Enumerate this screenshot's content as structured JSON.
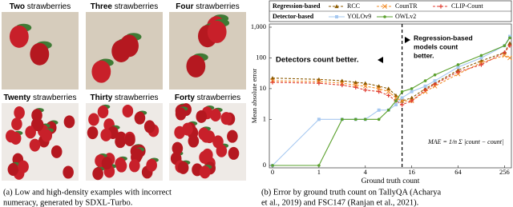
{
  "panels": {
    "a": {
      "images": [
        {
          "count": "Two",
          "noun": "strawberries"
        },
        {
          "count": "Three",
          "noun": "strawberries"
        },
        {
          "count": "Four",
          "noun": "strawberries"
        },
        {
          "count": "Twenty",
          "noun": "strawberries"
        },
        {
          "count": "Thirty",
          "noun": "strawberries"
        },
        {
          "count": "Forty",
          "noun": "strawberries"
        }
      ],
      "caption": [
        "(a) Low and high-density examples with incorrect",
        "numeracy, generated by SDXL-Turbo."
      ]
    },
    "b": {
      "caption": [
        "(b) Error by ground truth count on TallyQA (Acharya",
        "et al., 2019) and FSC147 (Ranjan et al., 2021)."
      ]
    }
  },
  "chart_data": {
    "type": "line",
    "xlabel": "Ground truth count",
    "ylabel": "Mean absolute error",
    "x": [
      0,
      1,
      2,
      3,
      4,
      6,
      8,
      10,
      12,
      16,
      24,
      32,
      64,
      128,
      256,
      300
    ],
    "xlim": [
      0,
      300
    ],
    "xticks": [
      0,
      1,
      4,
      16,
      64,
      256
    ],
    "xscale": "symlog",
    "ylim": [
      0,
      1000
    ],
    "yticks": [
      0,
      1,
      10,
      100,
      {
        "value": 1000,
        "label": "1,000"
      }
    ],
    "yscale": "symlog",
    "divider_x": 12,
    "series": [
      {
        "name": "RCC",
        "group": "Regression-based",
        "color": "#8b5a00",
        "marker": "triangle",
        "linestyle": "dashed",
        "values": [
          22,
          20,
          18,
          16,
          15,
          12,
          10,
          6,
          4,
          5,
          10,
          15,
          40,
          80,
          150,
          300
        ]
      },
      {
        "name": "CounTR",
        "group": "Regression-based",
        "color": "#f28c28",
        "marker": "cross",
        "linestyle": "dashed",
        "values": [
          18,
          17,
          15,
          13,
          12,
          10,
          8,
          5,
          4,
          4,
          8,
          12,
          30,
          70,
          120,
          100
        ]
      },
      {
        "name": "CLIP-Count",
        "group": "Regression-based",
        "color": "#e03c31",
        "marker": "plus",
        "linestyle": "dashed",
        "values": [
          16,
          15,
          13,
          11,
          9,
          8,
          6,
          4,
          3,
          4,
          9,
          14,
          35,
          60,
          150,
          250
        ]
      },
      {
        "name": "YOLOv9",
        "group": "Detector-based",
        "color": "#a6c8f0",
        "marker": "square",
        "linestyle": "solid",
        "values": [
          0,
          1,
          1,
          1,
          1,
          2,
          2,
          3,
          5,
          8,
          12,
          18,
          50,
          100,
          250,
          500
        ]
      },
      {
        "name": "OWLv2",
        "group": "Detector-based",
        "color": "#5aa02c",
        "marker": "dot",
        "linestyle": "solid",
        "values": [
          0,
          0,
          1,
          1,
          1,
          1,
          2,
          4,
          8,
          10,
          18,
          28,
          60,
          120,
          250,
          450
        ]
      }
    ],
    "annotations": {
      "left": "Detectors count better.",
      "right": [
        "Regression-based",
        "models count",
        "better."
      ]
    },
    "formula": "MAE = 1/n Σ |count − count|"
  }
}
